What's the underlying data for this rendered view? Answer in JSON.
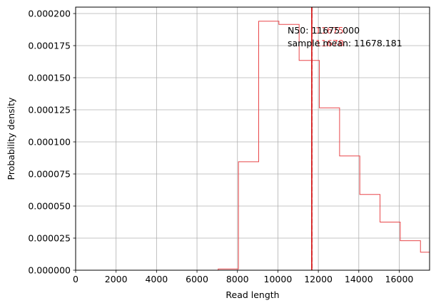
{
  "chart_data": {
    "type": "histogram",
    "xlabel": "Read length",
    "ylabel": "Probability density",
    "xlim": [
      0,
      17500
    ],
    "ylim": [
      0,
      0.000205
    ],
    "grid": true,
    "xticks": [
      0,
      2000,
      4000,
      6000,
      8000,
      10000,
      12000,
      14000,
      16000
    ],
    "xtick_labels": [
      "0",
      "2000",
      "4000",
      "6000",
      "8000",
      "10000",
      "12000",
      "14000",
      "16000"
    ],
    "yticks": [
      0,
      2.5e-05,
      5e-05,
      7.5e-05,
      0.0001,
      0.000125,
      0.00015,
      0.000175,
      0.0002
    ],
    "ytick_labels": [
      "0.000000",
      "0.000025",
      "0.000050",
      "0.000075",
      "0.000100",
      "0.000125",
      "0.000150",
      "0.000175",
      "0.000200"
    ],
    "bins": {
      "edges": [
        7050,
        8050,
        9050,
        10050,
        11050,
        12050,
        13050,
        14050,
        15050,
        16050,
        17050,
        17500
      ],
      "values": [
        1e-06,
        8.45e-05,
        0.000194,
        0.0001915,
        0.0001635,
        0.0001265,
        8.9e-05,
        5.9e-05,
        3.75e-05,
        2.3e-05,
        1.4e-05
      ]
    },
    "series_color": "#e8474a",
    "vlines": [
      {
        "x": 11675.0,
        "style": "solid",
        "color": "#d62728"
      },
      {
        "x": 11678.181,
        "style": "dashed",
        "color": "#d62728"
      }
    ],
    "annotations": [
      {
        "text": "N50: 11675.000"
      },
      {
        "text": "sample mean: 11678.181"
      }
    ],
    "overlap_labels": [
      "11675",
      "11678"
    ]
  }
}
